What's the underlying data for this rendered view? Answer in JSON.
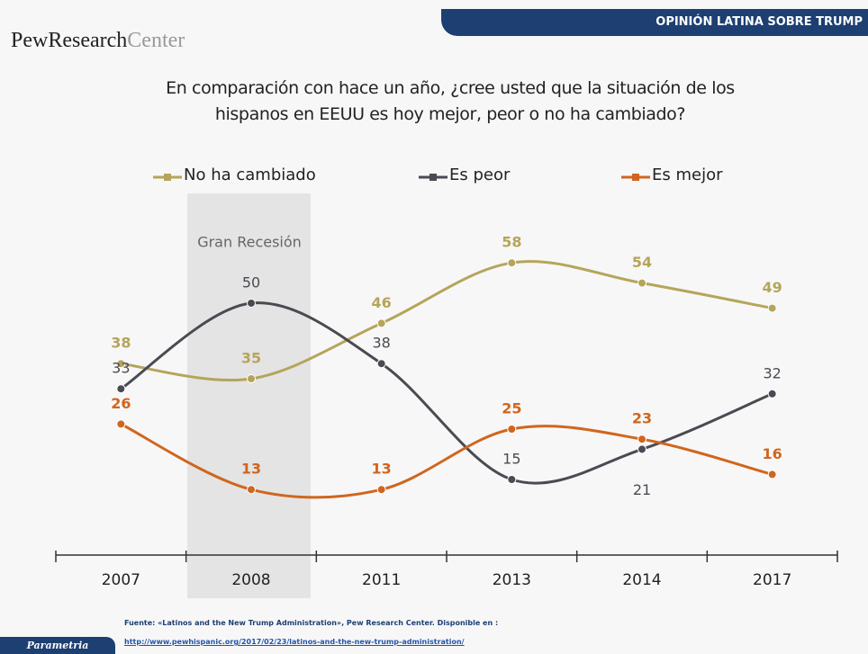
{
  "header": {
    "tag": "OPINIÓN LATINA SOBRE TRUMP",
    "logo_bold": "PewResearch",
    "logo_light": "Center"
  },
  "chart_data": {
    "type": "line",
    "title": "En comparación con hace un año, ¿cree usted que la situación de los hispanos en EEUU es hoy mejor, peor o no ha cambiado?",
    "annotation": "Gran Recesión",
    "categories": [
      "2007",
      "2008",
      "2011",
      "2013",
      "2014",
      "2017"
    ],
    "series": [
      {
        "name": "No ha cambiado",
        "color": "#b5a55a",
        "values": [
          38,
          35,
          46,
          58,
          54,
          49
        ]
      },
      {
        "name": "Es peor",
        "color": "#4a4a52",
        "values": [
          33,
          50,
          38,
          15,
          21,
          32
        ]
      },
      {
        "name": "Es mejor",
        "color": "#d0661e",
        "values": [
          26,
          13,
          13,
          25,
          23,
          16
        ]
      }
    ]
  },
  "footer": {
    "source": "Fuente: «Latinos and the New Trump Administration», Pew Research Center. Disponible en :",
    "url": "http://www.pewhispanic.org/2017/02/23/latinos-and-the-new-trump-administration/",
    "brand": "Parametria"
  }
}
